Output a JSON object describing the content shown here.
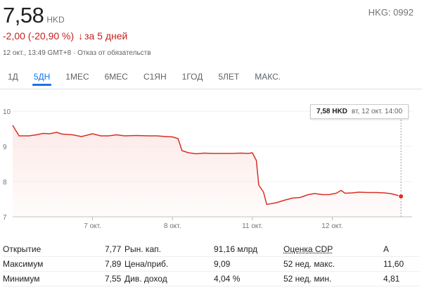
{
  "header": {
    "price": "7,58",
    "currency": "HKD",
    "ticker": "HKG: 0992",
    "change": "-2,00 (-20,90 %)",
    "arrow": "↓",
    "period": "за 5 дней",
    "meta": "12 окт., 13:49 GMT+8 · Отказ от обязательств"
  },
  "tabs": [
    {
      "label": "1Д",
      "active": false
    },
    {
      "label": "5ДН",
      "active": true
    },
    {
      "label": "1МЕС",
      "active": false
    },
    {
      "label": "6МЕС",
      "active": false
    },
    {
      "label": "С1ЯН",
      "active": false
    },
    {
      "label": "1ГОД",
      "active": false
    },
    {
      "label": "5ЛЕТ",
      "active": false
    },
    {
      "label": "МАКС.",
      "active": false
    }
  ],
  "tooltip": {
    "price": "7,58 HKD",
    "date": "вт, 12 окт. 14:00"
  },
  "colors": {
    "line": "#d93025",
    "fill": "#fce8e6",
    "accent": "#1a73e8"
  },
  "chart_data": {
    "type": "area",
    "ylim": [
      7,
      10
    ],
    "yticks": [
      {
        "value": 10,
        "label": "10"
      },
      {
        "value": 9,
        "label": "9"
      },
      {
        "value": 8,
        "label": "8"
      },
      {
        "value": 7,
        "label": "7"
      }
    ],
    "x_range": [
      0,
      5
    ],
    "xticks": [
      {
        "x": 1,
        "label": "7 окт."
      },
      {
        "x": 2,
        "label": "8 окт."
      },
      {
        "x": 3,
        "label": "11 окт."
      },
      {
        "x": 4,
        "label": "12 окт."
      }
    ],
    "grid": true,
    "series": [
      {
        "points": [
          [
            0.0,
            9.6
          ],
          [
            0.08,
            9.3
          ],
          [
            0.2,
            9.3
          ],
          [
            0.3,
            9.33
          ],
          [
            0.38,
            9.37
          ],
          [
            0.46,
            9.36
          ],
          [
            0.55,
            9.4
          ],
          [
            0.62,
            9.35
          ],
          [
            0.75,
            9.33
          ],
          [
            0.86,
            9.28
          ],
          [
            0.95,
            9.33
          ],
          [
            1.0,
            9.36
          ],
          [
            1.1,
            9.3
          ],
          [
            1.2,
            9.3
          ],
          [
            1.3,
            9.33
          ],
          [
            1.4,
            9.3
          ],
          [
            1.55,
            9.31
          ],
          [
            1.7,
            9.3
          ],
          [
            1.8,
            9.3
          ],
          [
            1.92,
            9.28
          ],
          [
            2.0,
            9.27
          ],
          [
            2.07,
            9.22
          ],
          [
            2.12,
            8.88
          ],
          [
            2.2,
            8.82
          ],
          [
            2.3,
            8.79
          ],
          [
            2.4,
            8.81
          ],
          [
            2.5,
            8.8
          ],
          [
            2.62,
            8.8
          ],
          [
            2.75,
            8.8
          ],
          [
            2.85,
            8.81
          ],
          [
            2.95,
            8.8
          ],
          [
            3.0,
            8.82
          ],
          [
            3.05,
            8.6
          ],
          [
            3.08,
            7.9
          ],
          [
            3.14,
            7.7
          ],
          [
            3.18,
            7.35
          ],
          [
            3.3,
            7.4
          ],
          [
            3.4,
            7.47
          ],
          [
            3.5,
            7.53
          ],
          [
            3.6,
            7.55
          ],
          [
            3.7,
            7.63
          ],
          [
            3.78,
            7.66
          ],
          [
            3.88,
            7.63
          ],
          [
            3.96,
            7.63
          ],
          [
            4.05,
            7.67
          ],
          [
            4.11,
            7.75
          ],
          [
            4.16,
            7.67
          ],
          [
            4.25,
            7.68
          ],
          [
            4.33,
            7.7
          ],
          [
            4.45,
            7.69
          ],
          [
            4.55,
            7.69
          ],
          [
            4.65,
            7.68
          ],
          [
            4.73,
            7.66
          ],
          [
            4.8,
            7.62
          ],
          [
            4.86,
            7.58
          ]
        ],
        "last": [
          4.86,
          7.58
        ]
      }
    ]
  },
  "stats": [
    {
      "c1": "Открытие",
      "v1": "7,77",
      "c2": "Рын. кап.",
      "v2": "91,16 млрд",
      "c3": "Оценка CDP",
      "v3": "A"
    },
    {
      "c1": "Максимум",
      "v1": "7,89",
      "c2": "Цена/приб.",
      "v2": "9,09",
      "c3": "52 нед. макс.",
      "v3": "11,60"
    },
    {
      "c1": "Минимум",
      "v1": "7,55",
      "c2": "Див. доход",
      "v2": "4,04 %",
      "c3": "52 нед. мин.",
      "v3": "4,81"
    }
  ]
}
